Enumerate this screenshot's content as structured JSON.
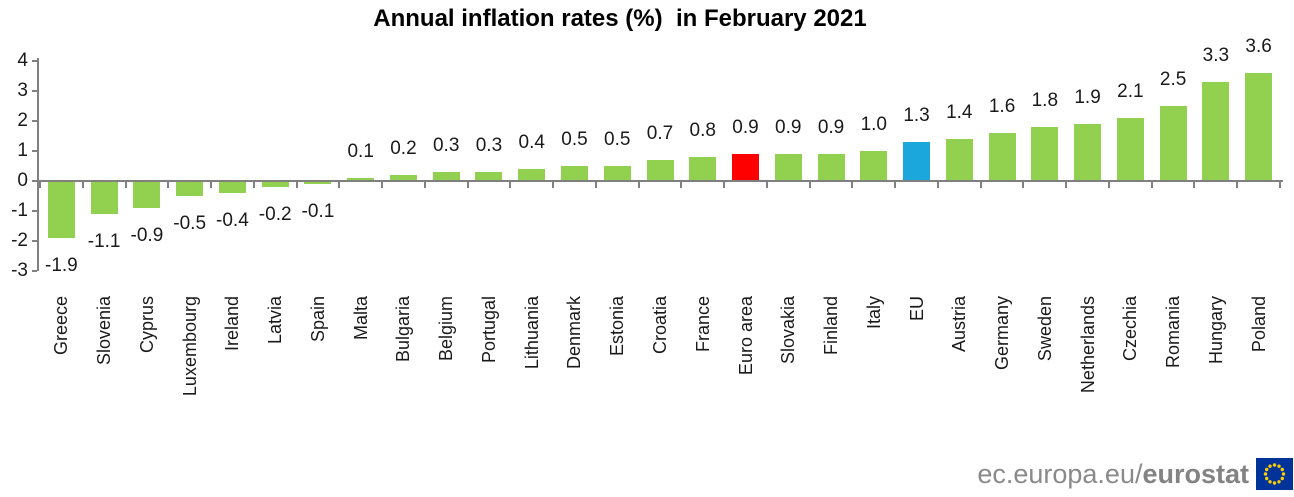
{
  "title": "Annual inflation rates (%)  in February 2021",
  "footer": {
    "site_prefix": "ec.europa.eu/",
    "site_bold": "eurostat"
  },
  "chart_data": {
    "type": "bar",
    "title": "Annual inflation rates (%) in February 2021",
    "categories": [
      "Greece",
      "Slovenia",
      "Cyprus",
      "Luxembourg",
      "Ireland",
      "Latvia",
      "Spain",
      "Malta",
      "Bulgaria",
      "Belgium",
      "Portugal",
      "Lithuania",
      "Denmark",
      "Estonia",
      "Croatia",
      "France",
      "Euro area",
      "Slovakia",
      "Finland",
      "Italy",
      "EU",
      "Austria",
      "Germany",
      "Sweden",
      "Netherlands",
      "Czechia",
      "Romania",
      "Hungary",
      "Poland"
    ],
    "values": [
      -1.9,
      -1.1,
      -0.9,
      -0.5,
      -0.4,
      -0.2,
      -0.1,
      0.1,
      0.2,
      0.3,
      0.3,
      0.4,
      0.5,
      0.5,
      0.7,
      0.8,
      0.9,
      0.9,
      0.9,
      1.0,
      1.3,
      1.4,
      1.6,
      1.8,
      1.9,
      2.1,
      2.5,
      3.3,
      3.6
    ],
    "value_labels": [
      "-1.9",
      "-1.1",
      "-0.9",
      "-0.5",
      "-0.4",
      "-0.2",
      "-0.1",
      "0.1",
      "0.2",
      "0.3",
      "0.3",
      "0.4",
      "0.5",
      "0.5",
      "0.7",
      "0.8",
      "0.9",
      "0.9",
      "0.9",
      "1.0",
      "1.3",
      "1.4",
      "1.6",
      "1.8",
      "1.9",
      "2.1",
      "2.5",
      "3.3",
      "3.6"
    ],
    "yticks": [
      4,
      3,
      2,
      1,
      0,
      -1,
      -2,
      -3
    ],
    "ylim": [
      -3,
      4
    ],
    "xlabel": "",
    "ylabel": "",
    "grid": false,
    "legend": null,
    "bar_color_default": "#92D050",
    "highlighted_bars": {
      "Euro area": "#FF0000",
      "EU": "#1BA7DC"
    },
    "axis_color": "#808080",
    "flag_colors": {
      "background": "#003399",
      "stars": "#FFCC00"
    }
  }
}
